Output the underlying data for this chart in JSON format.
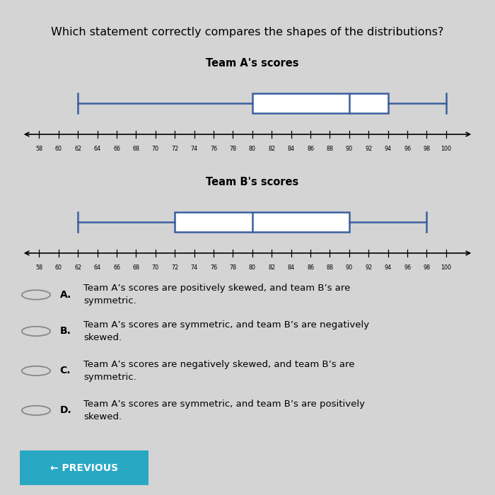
{
  "title": "Which statement correctly compares the shapes of the distributions?",
  "teamA_title": "Team A's scores",
  "teamB_title": "Team B's scores",
  "teamA": {
    "min": 62,
    "q1": 80,
    "median": 90,
    "q3": 94,
    "max": 100
  },
  "teamB": {
    "min": 62,
    "q1": 72,
    "median": 80,
    "q3": 90,
    "max": 98
  },
  "axis_min": 58,
  "axis_max": 102,
  "axis_ticks": [
    58,
    60,
    62,
    64,
    66,
    68,
    70,
    72,
    74,
    76,
    78,
    80,
    82,
    84,
    86,
    88,
    90,
    92,
    94,
    96,
    98,
    100
  ],
  "box_color": "#3a5fa0",
  "box_facecolor": "white",
  "bg_color": "#d4d4d4",
  "choices": [
    {
      "label": "A.",
      "text": "Team A’s scores are positively skewed, and team B’s are\nsymmetric."
    },
    {
      "label": "B.",
      "text": "Team A’s scores are symmetric, and team B’s are negatively\nskewed."
    },
    {
      "label": "C.",
      "text": "Team A’s scores are negatively skewed, and team B’s are\nsymmetric."
    },
    {
      "label": "D.",
      "text": "Team A’s scores are symmetric, and team B’s are positively\nskewed."
    }
  ],
  "button_color": "#29a8c4",
  "button_text": "← PREVIOUS",
  "button_text_color": "white"
}
